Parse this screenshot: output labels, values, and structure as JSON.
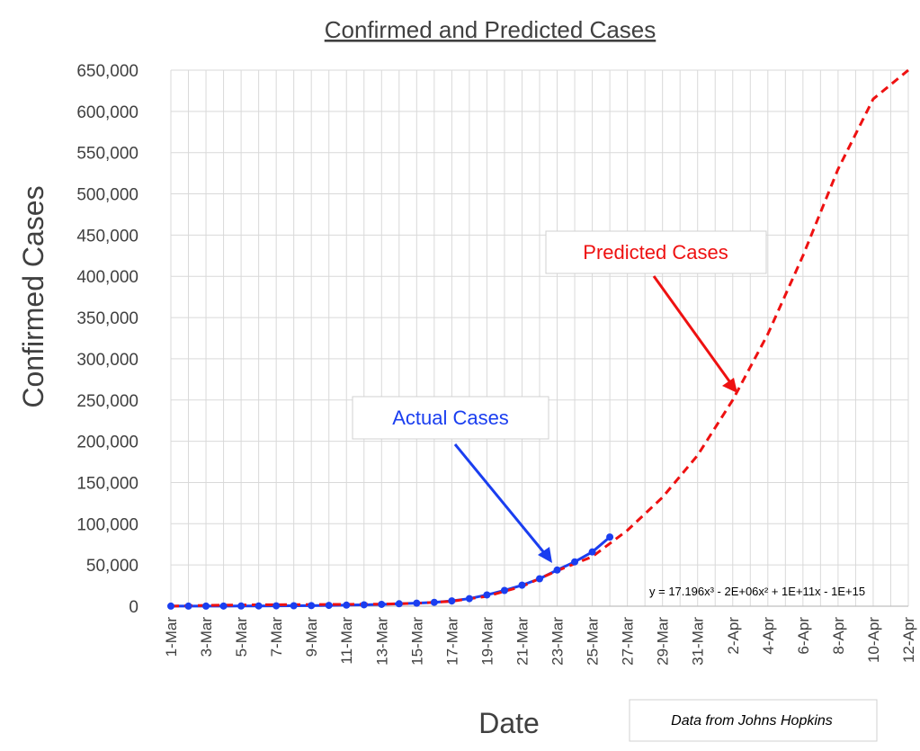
{
  "chart_data": {
    "type": "line",
    "title": "Confirmed and Predicted Cases",
    "xlabel": "Date",
    "ylabel": "Confirmed Cases",
    "ylim": [
      0,
      650000
    ],
    "y_ticks": [
      "0",
      "50,000",
      "100,000",
      "150,000",
      "200,000",
      "250,000",
      "300,000",
      "350,000",
      "400,000",
      "450,000",
      "500,000",
      "550,000",
      "600,000",
      "650,000"
    ],
    "x_ticks": [
      "1-Mar",
      "3-Mar",
      "5-Mar",
      "7-Mar",
      "9-Mar",
      "11-Mar",
      "13-Mar",
      "15-Mar",
      "17-Mar",
      "19-Mar",
      "21-Mar",
      "23-Mar",
      "25-Mar",
      "27-Mar",
      "29-Mar",
      "31-Mar",
      "2-Apr",
      "4-Apr",
      "6-Apr",
      "8-Apr",
      "10-Apr",
      "12-Apr"
    ],
    "grid": true,
    "series": [
      {
        "name": "Actual Cases",
        "style": "solid-with-markers",
        "color": "#1a3ef0",
        "x": [
          "1-Mar",
          "2-Mar",
          "3-Mar",
          "4-Mar",
          "5-Mar",
          "6-Mar",
          "7-Mar",
          "8-Mar",
          "9-Mar",
          "10-Mar",
          "11-Mar",
          "12-Mar",
          "13-Mar",
          "14-Mar",
          "15-Mar",
          "16-Mar",
          "17-Mar",
          "18-Mar",
          "19-Mar",
          "20-Mar",
          "21-Mar",
          "22-Mar",
          "23-Mar",
          "24-Mar",
          "25-Mar",
          "26-Mar"
        ],
        "values": [
          75,
          100,
          124,
          158,
          221,
          319,
          435,
          541,
          704,
          994,
          1301,
          1697,
          2247,
          2943,
          3680,
          4663,
          6411,
          9197,
          13677,
          19100,
          25489,
          33276,
          43847,
          53740,
          65778,
          83836
        ]
      },
      {
        "name": "Predicted Cases",
        "style": "dashed",
        "color": "#ee1111",
        "x": [
          "1-Mar",
          "3-Mar",
          "5-Mar",
          "7-Mar",
          "9-Mar",
          "11-Mar",
          "13-Mar",
          "15-Mar",
          "17-Mar",
          "19-Mar",
          "21-Mar",
          "23-Mar",
          "25-Mar",
          "27-Mar",
          "29-Mar",
          "31-Mar",
          "2-Apr",
          "4-Apr",
          "6-Apr",
          "8-Apr",
          "10-Apr",
          "12-Apr"
        ],
        "values": [
          0,
          1000,
          1500,
          1800,
          2000,
          2200,
          2500,
          3500,
          6000,
          12000,
          24000,
          43000,
          60000,
          92000,
          132000,
          183000,
          250000,
          330000,
          425000,
          530000,
          615000,
          650000
        ]
      }
    ],
    "annotations": {
      "actual_label": "Actual Cases",
      "predicted_label": "Predicted Cases",
      "equation": "y = 17.196x³ - 2E+06x² + 1E+11x - 1E+15",
      "source_note": "Data from Johns Hopkins"
    },
    "colors": {
      "actual": "#1a3ef0",
      "predicted": "#ee1111",
      "grid": "#d9d9d9",
      "text": "#404040"
    }
  }
}
